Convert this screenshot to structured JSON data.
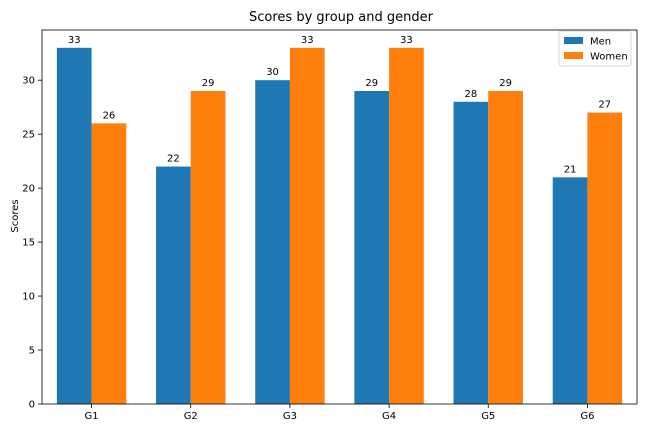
{
  "chart_data": {
    "type": "bar",
    "title": "Scores by group and gender",
    "xlabel": "",
    "ylabel": "Scores",
    "categories": [
      "G1",
      "G2",
      "G3",
      "G4",
      "G5",
      "G6"
    ],
    "series": [
      {
        "name": "Men",
        "values": [
          33,
          22,
          30,
          29,
          28,
          21
        ],
        "color": "#1f77b4"
      },
      {
        "name": "Women",
        "values": [
          26,
          29,
          33,
          33,
          29,
          27
        ],
        "color": "#ff7f0e"
      }
    ],
    "ylim": [
      0,
      34.65
    ],
    "yticks": [
      0,
      5,
      10,
      15,
      20,
      25,
      30
    ],
    "grid": false,
    "legend": "top-right"
  }
}
